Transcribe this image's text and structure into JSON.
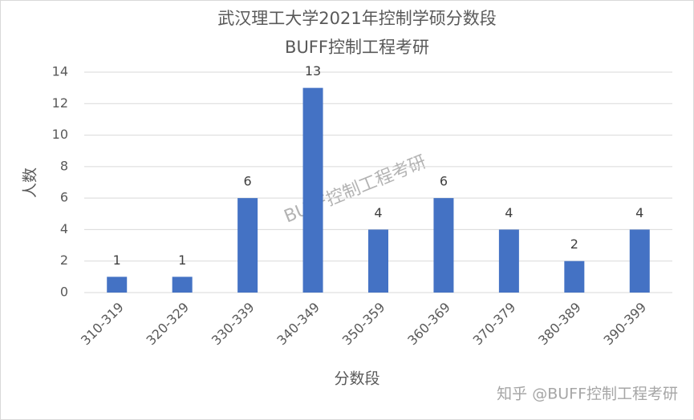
{
  "chart_data": {
    "type": "bar",
    "title": "武汉理工大学2021年控制学硕分数段",
    "subtitle": "BUFF控制工程考研",
    "x_label": "分数段",
    "y_label": "人数",
    "categories": [
      "310-319",
      "320-329",
      "330-339",
      "340-349",
      "350-359",
      "360-369",
      "370-379",
      "380-389",
      "390-399"
    ],
    "values": [
      1,
      1,
      6,
      13,
      4,
      6,
      4,
      2,
      4
    ],
    "color": "#4472c4",
    "ylim": [
      0,
      14
    ],
    "yticks": [
      0,
      2,
      4,
      6,
      8,
      10,
      12,
      14
    ],
    "grid": true,
    "annotations": [
      "BUFF控制工程考研",
      "知乎 @BUFF控制工程考研"
    ]
  }
}
